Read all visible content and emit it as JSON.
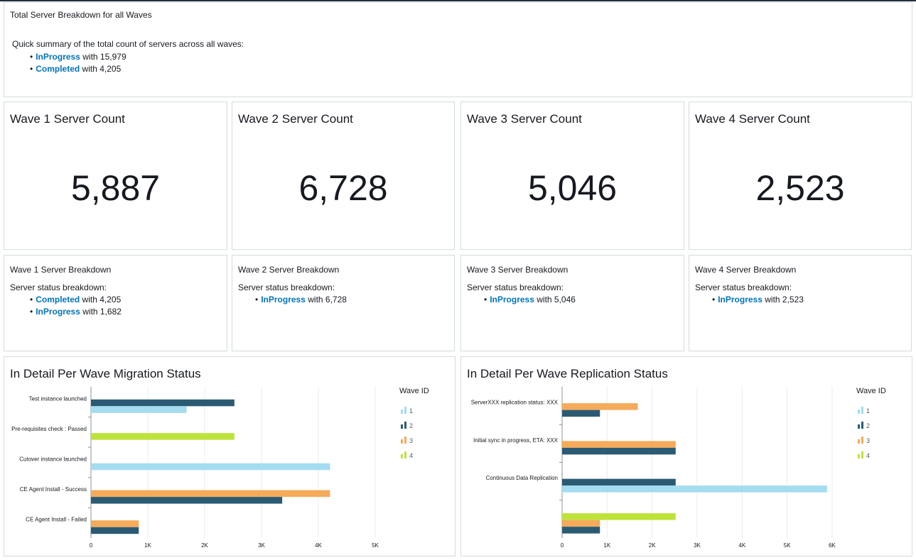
{
  "summary": {
    "title": "Total Server Breakdown for all Waves",
    "intro": "Quick summary of the total count of servers across all waves:",
    "items": [
      {
        "status": "InProgress",
        "text": " with 15,979"
      },
      {
        "status": "Completed",
        "text": " with 4,205"
      }
    ]
  },
  "kpis": [
    {
      "title": "Wave 1 Server Count",
      "value": "5,887"
    },
    {
      "title": "Wave 2 Server Count",
      "value": "6,728"
    },
    {
      "title": "Wave 3 Server Count",
      "value": "5,046"
    },
    {
      "title": "Wave 4 Server Count",
      "value": "2,523"
    }
  ],
  "breakdowns": [
    {
      "title": "Wave 1 Server Breakdown",
      "subtitle": "Server status breakdown:",
      "items": [
        {
          "status": "Completed",
          "text": " with 4,205"
        },
        {
          "status": "InProgress",
          "text": " with 1,682"
        }
      ]
    },
    {
      "title": "Wave 2 Server Breakdown",
      "subtitle": "Server status breakdown:",
      "items": [
        {
          "status": "InProgress",
          "text": " with 6,728"
        }
      ]
    },
    {
      "title": "Wave 3 Server Breakdown",
      "subtitle": "Server status breakdown:",
      "items": [
        {
          "status": "InProgress",
          "text": " with 5,046"
        }
      ]
    },
    {
      "title": "Wave 4 Server Breakdown",
      "subtitle": "Server status breakdown:",
      "items": [
        {
          "status": "InProgress",
          "text": " with 2,523"
        }
      ]
    }
  ],
  "colors": {
    "link": "#0073bb",
    "wave1": "#a4dcf0",
    "wave2": "#2b5b73",
    "wave3": "#f5ab5a",
    "wave4": "#bde33a",
    "grid": "#e9ebed"
  },
  "chart_data": [
    {
      "type": "bar",
      "orientation": "horizontal",
      "title": "In Detail Per Wave Migration Status",
      "legend_title": "Wave ID",
      "categories": [
        "Test instance launched",
        "Pre-requisites check : Passed",
        "Cutover instance launched",
        "CE Agent Install - Success",
        "CE Agent Install - Failed"
      ],
      "series": [
        {
          "name": "1",
          "values": [
            1682,
            0,
            4205,
            0,
            0
          ]
        },
        {
          "name": "2",
          "values": [
            2523,
            0,
            0,
            3364,
            841
          ]
        },
        {
          "name": "3",
          "values": [
            0,
            0,
            0,
            4205,
            841
          ]
        },
        {
          "name": "4",
          "values": [
            0,
            2523,
            0,
            0,
            0
          ]
        }
      ],
      "xlim": [
        0,
        5000
      ],
      "xticks": [
        0,
        1000,
        2000,
        3000,
        4000,
        5000
      ],
      "xtick_labels": [
        "0",
        "1K",
        "2K",
        "3K",
        "4K",
        "5K"
      ],
      "legend": "right"
    },
    {
      "type": "bar",
      "orientation": "horizontal",
      "title": "In Detail Per Wave Replication Status",
      "legend_title": "Wave ID",
      "categories": [
        "ServerXXX replication status: XXX",
        "Initial sync in progress, ETA: XXX",
        "Continuous Data Replication",
        ""
      ],
      "series": [
        {
          "name": "1",
          "values": [
            0,
            0,
            5887,
            0
          ]
        },
        {
          "name": "2",
          "values": [
            841,
            2523,
            2523,
            841
          ]
        },
        {
          "name": "3",
          "values": [
            1682,
            2523,
            0,
            841
          ]
        },
        {
          "name": "4",
          "values": [
            0,
            0,
            0,
            2523
          ]
        }
      ],
      "xlim": [
        0,
        6000
      ],
      "xticks": [
        0,
        1000,
        2000,
        3000,
        4000,
        5000,
        6000
      ],
      "xtick_labels": [
        "0",
        "1K",
        "2K",
        "3K",
        "4K",
        "5K",
        "6K"
      ],
      "legend": "right"
    }
  ]
}
